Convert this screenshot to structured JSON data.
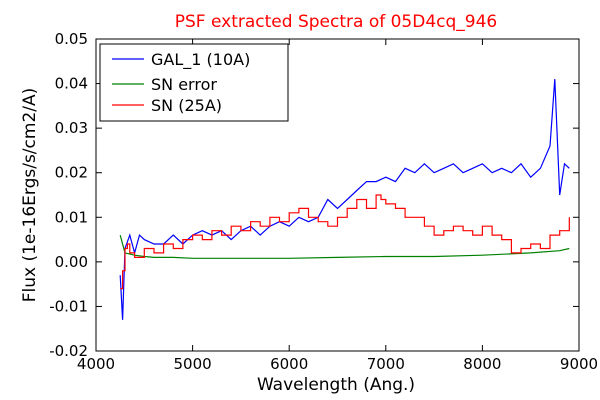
{
  "chart_data": {
    "type": "line",
    "title": "PSF extracted Spectra of 05D4cq_946",
    "title_color": "#ff0000",
    "xlabel": "Wavelength (Ang.)",
    "ylabel": "Flux (1e-16Ergs/s/cm2/A)",
    "xlim": [
      4000,
      9000
    ],
    "ylim": [
      -0.02,
      0.05
    ],
    "x_ticks": [
      4000,
      5000,
      6000,
      7000,
      8000,
      9000
    ],
    "x_tick_labels": [
      "4000",
      "5000",
      "6000",
      "7000",
      "8000",
      "9000"
    ],
    "y_ticks": [
      -0.02,
      -0.01,
      0.0,
      0.01,
      0.02,
      0.03,
      0.04,
      0.05
    ],
    "y_tick_labels": [
      "-0.02",
      "-0.01",
      "0.00",
      "0.01",
      "0.02",
      "0.03",
      "0.04",
      "0.05"
    ],
    "grid": false,
    "legend_position": "top-left",
    "series": [
      {
        "name": "GAL_1 (10A)",
        "color": "#0000ff",
        "style": "line",
        "x": [
          4250,
          4275,
          4300,
          4350,
          4400,
          4450,
          4500,
          4600,
          4700,
          4800,
          4900,
          5000,
          5100,
          5200,
          5300,
          5400,
          5500,
          5600,
          5700,
          5800,
          5900,
          6000,
          6100,
          6200,
          6300,
          6400,
          6500,
          6600,
          6700,
          6800,
          6900,
          7000,
          7100,
          7200,
          7300,
          7400,
          7500,
          7600,
          7700,
          7800,
          7900,
          8000,
          8100,
          8200,
          8300,
          8400,
          8500,
          8600,
          8700,
          8750,
          8800,
          8850,
          8900
        ],
        "y": [
          -0.003,
          -0.013,
          0.003,
          0.006,
          0.002,
          0.006,
          0.005,
          0.004,
          0.004,
          0.006,
          0.004,
          0.006,
          0.007,
          0.006,
          0.007,
          0.005,
          0.007,
          0.008,
          0.006,
          0.008,
          0.009,
          0.008,
          0.01,
          0.009,
          0.01,
          0.014,
          0.012,
          0.014,
          0.016,
          0.018,
          0.018,
          0.019,
          0.018,
          0.021,
          0.02,
          0.022,
          0.02,
          0.021,
          0.022,
          0.02,
          0.021,
          0.022,
          0.02,
          0.021,
          0.02,
          0.022,
          0.019,
          0.021,
          0.026,
          0.041,
          0.015,
          0.022,
          0.021
        ]
      },
      {
        "name": "SN error",
        "color": "#008000",
        "style": "line",
        "x": [
          4250,
          4300,
          4400,
          4500,
          4600,
          4800,
          5000,
          5500,
          6000,
          6500,
          7000,
          7500,
          8000,
          8500,
          8800,
          8900
        ],
        "y": [
          0.006,
          0.002,
          0.0015,
          0.0012,
          0.001,
          0.001,
          0.0008,
          0.0008,
          0.0008,
          0.001,
          0.0012,
          0.0012,
          0.0015,
          0.002,
          0.0025,
          0.003
        ]
      },
      {
        "name": "SN (25A)",
        "color": "#ff0000",
        "style": "step",
        "x": [
          4250,
          4275,
          4300,
          4325,
          4350,
          4400,
          4500,
          4600,
          4700,
          4800,
          4900,
          5000,
          5100,
          5200,
          5300,
          5400,
          5500,
          5600,
          5700,
          5800,
          5900,
          6000,
          6100,
          6200,
          6300,
          6400,
          6500,
          6600,
          6700,
          6800,
          6900,
          6950,
          7000,
          7100,
          7200,
          7300,
          7400,
          7500,
          7600,
          7700,
          7800,
          7900,
          8000,
          8100,
          8200,
          8300,
          8400,
          8500,
          8600,
          8700,
          8800,
          8900
        ],
        "y": [
          -0.006,
          -0.002,
          0.003,
          0.004,
          0.002,
          0.001,
          0.003,
          0.002,
          0.004,
          0.003,
          0.005,
          0.006,
          0.005,
          0.007,
          0.006,
          0.008,
          0.007,
          0.009,
          0.008,
          0.01,
          0.009,
          0.011,
          0.012,
          0.01,
          0.009,
          0.008,
          0.01,
          0.012,
          0.014,
          0.012,
          0.015,
          0.014,
          0.013,
          0.012,
          0.01,
          0.01,
          0.008,
          0.006,
          0.007,
          0.008,
          0.007,
          0.006,
          0.008,
          0.006,
          0.005,
          0.002,
          0.003,
          0.004,
          0.003,
          0.006,
          0.007,
          0.01
        ]
      }
    ]
  }
}
